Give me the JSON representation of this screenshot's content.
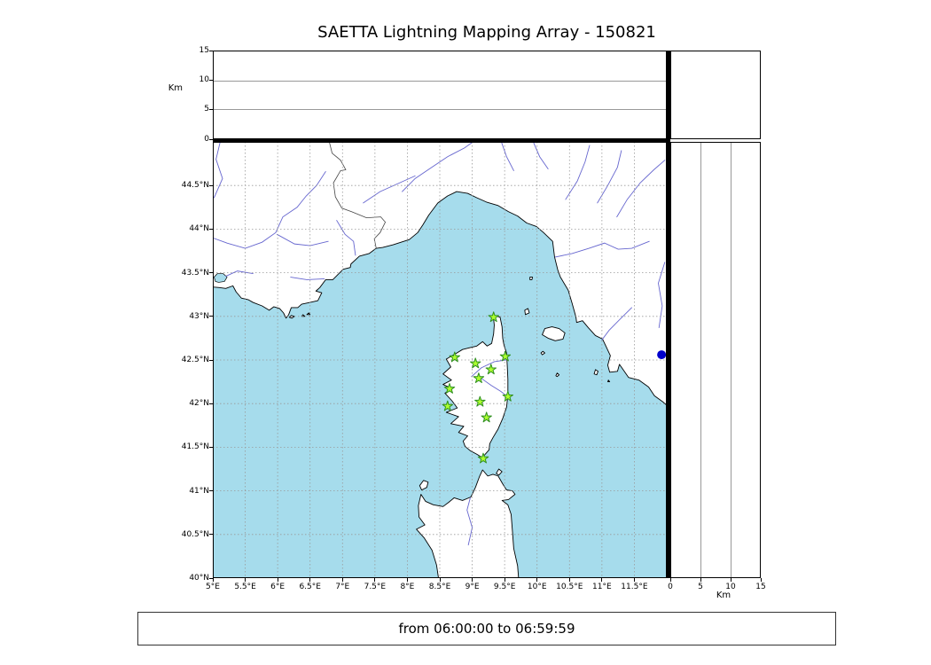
{
  "title": "SAETTA Lightning Mapping Array - 150821",
  "footer": {
    "time_range": "from 06:00:00 to 06:59:59"
  },
  "colors": {
    "sea": "#a6dcec",
    "land": "#ffffff",
    "coast": "#000000",
    "river": "#6666cf",
    "border": "#444444",
    "grid": "#999999",
    "star_fill": "#adff2f",
    "star_edge": "#2f8f1f",
    "dot": "#0000cd",
    "frame": "#000000"
  },
  "alt_axis": {
    "label": "Km",
    "min": 0,
    "max": 15,
    "ticks": [
      {
        "value": 0,
        "label": "0"
      },
      {
        "value": 5,
        "label": "5"
      },
      {
        "value": 10,
        "label": "10"
      },
      {
        "value": 15,
        "label": "15"
      }
    ],
    "grid_values": [
      5,
      10
    ]
  },
  "map": {
    "lon_min": 5,
    "lon_max": 12,
    "lat_min": 40,
    "lat_max_plot": 45,
    "lon_ticks": [
      {
        "value": 5,
        "label": "5°E"
      },
      {
        "value": 5.5,
        "label": "5.5°E"
      },
      {
        "value": 6,
        "label": "6°E"
      },
      {
        "value": 6.5,
        "label": "6.5°E"
      },
      {
        "value": 7,
        "label": "7°E"
      },
      {
        "value": 7.5,
        "label": "7.5°E"
      },
      {
        "value": 8,
        "label": "8°E"
      },
      {
        "value": 8.5,
        "label": "8.5°E"
      },
      {
        "value": 9,
        "label": "9°E"
      },
      {
        "value": 9.5,
        "label": "9.5°E"
      },
      {
        "value": 10,
        "label": "10°E"
      },
      {
        "value": 10.5,
        "label": "10.5°E"
      },
      {
        "value": 11,
        "label": "11°E"
      },
      {
        "value": 11.5,
        "label": "11.5°E"
      }
    ],
    "lat_ticks": [
      {
        "value": 40,
        "label": "40°N"
      },
      {
        "value": 40.5,
        "label": "40.5°N"
      },
      {
        "value": 41,
        "label": "41°N"
      },
      {
        "value": 41.5,
        "label": "41.5°N"
      },
      {
        "value": 42,
        "label": "42°N"
      },
      {
        "value": 42.5,
        "label": "42.5°N"
      },
      {
        "value": 43,
        "label": "43°N"
      },
      {
        "value": 43.5,
        "label": "43.5°N"
      },
      {
        "value": 44,
        "label": "44°N"
      },
      {
        "value": 44.5,
        "label": "44.5°N"
      }
    ],
    "grid_lons": [
      5.5,
      6,
      6.5,
      7,
      7.5,
      8,
      8.5,
      9,
      9.5,
      10,
      10.5,
      11,
      11.5
    ],
    "grid_lats": [
      40.5,
      41,
      41.5,
      42,
      42.5,
      43,
      43.5,
      44,
      44.5
    ]
  },
  "stations": [
    {
      "lon": 9.33,
      "lat": 42.99
    },
    {
      "lon": 8.73,
      "lat": 42.53
    },
    {
      "lon": 9.05,
      "lat": 42.46
    },
    {
      "lon": 9.51,
      "lat": 42.54
    },
    {
      "lon": 9.29,
      "lat": 42.39
    },
    {
      "lon": 9.1,
      "lat": 42.29
    },
    {
      "lon": 8.65,
      "lat": 42.17
    },
    {
      "lon": 9.55,
      "lat": 42.08
    },
    {
      "lon": 9.12,
      "lat": 42.02
    },
    {
      "lon": 8.62,
      "lat": 41.97
    },
    {
      "lon": 9.22,
      "lat": 41.84
    },
    {
      "lon": 9.17,
      "lat": 41.37
    }
  ],
  "blue_dot": {
    "lon": 11.92,
    "lat": 42.56
  },
  "chart_data": {
    "type": "scatter",
    "title": "SAETTA Lightning Mapping Array - 150821",
    "annotation": "from 06:00:00 to 06:59:59",
    "panels": [
      {
        "name": "altitude-vs-longitude",
        "xlim": [
          5,
          12
        ],
        "ylim": [
          0,
          15
        ],
        "ylabel": "Km",
        "grid_lines_km": [
          5,
          10
        ],
        "series": []
      },
      {
        "name": "map-plan-view",
        "xlim": [
          5,
          12
        ],
        "ylim": [
          40,
          45
        ],
        "grid": "0.5 degree dashed gridlines",
        "series": [
          {
            "name": "LMA stations",
            "marker": "star",
            "color": "#adff2f",
            "points": [
              [
                9.33,
                42.99
              ],
              [
                8.73,
                42.53
              ],
              [
                9.05,
                42.46
              ],
              [
                9.51,
                42.54
              ],
              [
                9.29,
                42.39
              ],
              [
                9.1,
                42.29
              ],
              [
                8.65,
                42.17
              ],
              [
                9.55,
                42.08
              ],
              [
                9.12,
                42.02
              ],
              [
                8.62,
                41.97
              ],
              [
                9.22,
                41.84
              ],
              [
                9.17,
                41.37
              ]
            ]
          },
          {
            "name": "reference point",
            "marker": "circle",
            "color": "#0000cd",
            "points": [
              [
                11.92,
                42.56
              ]
            ]
          }
        ]
      },
      {
        "name": "altitude-vs-latitude",
        "xlim": [
          0,
          15
        ],
        "ylim": [
          40,
          45
        ],
        "xlabel": "Km",
        "grid_lines_km": [
          5,
          10
        ],
        "series": []
      }
    ]
  },
  "geo": {
    "land": [
      "M4.95,43.34 L5.10,43.33 5.20,43.32 5.31,43.35 5.36,43.28 5.44,43.21 5.55,43.19 5.62,43.16 5.76,43.12 5.87,43.07 5.94,43.11 6.03,43.09 6.09,43.04 6.13,42.98 6.17,43.02 6.21,43.10 6.31,43.10 6.37,43.14 6.50,43.16 6.62,43.18 6.68,43.27 6.59,43.29 6.65,43.33 6.74,43.42 6.85,43.42 6.93,43.48 7.01,43.54 7.12,43.56 7.13,43.60 7.26,43.69 7.41,43.72 7.52,43.78 7.62,43.79 7.78,43.82 8.03,43.88 8.16,43.96 8.24,44.05 8.33,44.16 8.47,44.30 8.62,44.38 8.76,44.43 8.93,44.41 9.07,44.36 9.22,44.31 9.40,44.27 9.56,44.20 9.70,44.15 9.84,44.07 9.99,44.03 10.10,43.96 10.24,43.86 10.27,43.68 10.32,43.53 10.36,43.45 10.48,43.30 10.54,43.15 10.60,42.99 10.61,42.93 10.70,42.95 10.79,42.87 10.90,42.78 11.01,42.74 11.13,42.55 11.09,42.44 11.12,42.36 11.24,42.37 11.27,42.45 11.41,42.30 11.57,42.27 11.72,42.19 11.81,42.09 11.94,42.02 12.05,41.95 12.05,45.20 4.95,45.20 Z",
      "M9.35,43.01 L9.43,42.99 9.46,42.88 9.47,42.75 9.49,42.67 9.53,42.58 9.54,42.44 9.55,42.28 9.55,42.10 9.53,41.96 9.47,41.83 9.40,41.71 9.32,41.61 9.27,41.54 9.26,41.47 9.20,41.42 9.16,41.38 9.07,41.42 8.97,41.46 8.89,41.51 8.86,41.57 8.93,41.63 8.79,41.67 8.87,41.74 8.67,41.77 8.79,41.85 8.60,41.90 8.77,41.95 8.69,42.03 8.58,42.12 8.69,42.17 8.55,42.22 8.68,42.27 8.55,42.34 8.67,42.42 8.60,42.51 8.74,42.57 8.85,42.62 8.96,42.64 9.07,42.66 9.16,42.71 9.23,42.66 9.30,42.69 9.33,42.80 9.34,42.90 9.33,42.97 Z",
      "M8.49,39.95 L8.45,40.15 8.38,40.32 8.26,40.46 8.14,40.56 8.27,40.61 8.18,40.70 8.17,40.83 8.21,40.96 8.28,40.88 8.40,40.84 8.55,40.82 8.64,40.87 8.72,40.92 8.85,40.89 8.98,40.93 9.05,41.04 9.11,41.16 9.16,41.24 9.24,41.17 9.32,41.19 9.40,41.17 9.47,41.08 9.53,41.01 9.62,41.00 9.66,40.96 9.56,40.90 9.46,40.89 9.55,40.84 9.60,40.73 9.62,40.54 9.64,40.34 9.70,40.14 9.72,39.95 Z",
      "M10.08,42.79 L10.12,42.86 10.23,42.88 10.34,42.86 10.43,42.81 10.40,42.74 10.28,42.72 10.17,42.75 Z",
      "M8.22,41.01 L8.19,41.06 8.25,41.12 8.32,41.10 8.30,41.04 Z",
      "M9.37,41.20 L9.41,41.25 9.46,41.22 9.41,41.18 Z",
      "M9.82,43.02 L9.81,43.07 9.86,43.09 9.88,43.04 Z",
      "M9.89,43.42 L9.89,43.45 9.93,43.45 9.92,43.42 Z",
      "M10.06,42.58 L10.09,42.60 10.12,42.58 10.08,42.56 Z",
      "M10.29,42.32 L10.31,42.35 10.34,42.33 10.31,42.31 Z",
      "M10.88,42.34 L10.90,42.39 10.94,42.37 10.92,42.33 Z",
      "M11.09,42.25 L11.10,42.27 11.12,42.25 Z",
      "M6.18,42.99 L6.21,43.01 6.26,43.00 6.22,42.98 Z",
      "M6.37,43.00 L6.39,43.02 6.42,43.00 Z",
      "M6.45,43.02 L6.48,43.04 6.50,43.02 Z"
    ],
    "water": [
      "M5.04,43.40 L5.02,43.45 5.07,43.49 5.16,43.49 5.22,43.45 5.18,43.40 5.09,43.39 Z"
    ],
    "rivers": [
      "M6.74,44.66 L6.60,44.50 6.44,44.38 6.30,44.25 6.08,44.14 5.97,43.96 5.76,43.85 5.50,43.78 5.22,43.84 4.96,43.91",
      "M6.78,43.86 L6.50,43.81 6.26,43.83 5.99,43.94",
      "M6.91,44.10 L7.04,43.94 7.17,43.86 7.20,43.70",
      "M5.62,43.49 L5.38,43.52 5.20,43.46",
      "M6.20,43.45 L6.45,43.42 6.72,43.43",
      "M5.12,45.02 L5.05,44.80 5.15,44.58 5.02,44.36",
      "M7.92,44.43 L8.12,44.58 8.36,44.70 8.62,44.83 8.88,44.93 9.05,45.02",
      "M7.32,44.30 L7.58,44.43 7.88,44.53 8.12,44.61",
      "M9.44,45.02 L9.53,44.83 9.64,44.67",
      "M9.93,45.02 L10.04,44.83 10.17,44.69",
      "M10.44,44.34 L10.62,44.55 10.74,44.77 10.81,44.96",
      "M10.93,44.30 L11.09,44.50 11.24,44.71 11.30,44.90",
      "M11.23,44.14 L11.39,44.34 11.59,44.53 11.80,44.68 11.97,44.79",
      "M11.73,43.86 L11.46,43.78 11.25,43.77 11.04,43.84 10.80,43.78 10.54,43.72 10.28,43.68",
      "M11.46,43.10 L11.27,42.96 11.11,42.84 11.00,42.73",
      "M11.97,43.62 L11.87,43.38 11.93,43.12 11.88,42.87",
      "M8.94,40.38 L9.00,40.58 8.92,40.78 8.97,40.92",
      "M8.99,42.31 L9.14,42.41 9.34,42.48 9.52,42.50",
      "M9.12,42.30 L9.29,42.21 9.44,42.14 9.53,42.09"
    ],
    "borders": [
      "M7.52,43.78 L7.49,43.89 7.58,43.96 7.66,44.08 7.59,44.14 7.37,44.13 7.14,44.20 6.99,44.24 6.89,44.37 6.86,44.53 6.97,44.67 7.05,44.68 6.97,44.79 6.84,44.87 6.79,45.02"
    ]
  }
}
